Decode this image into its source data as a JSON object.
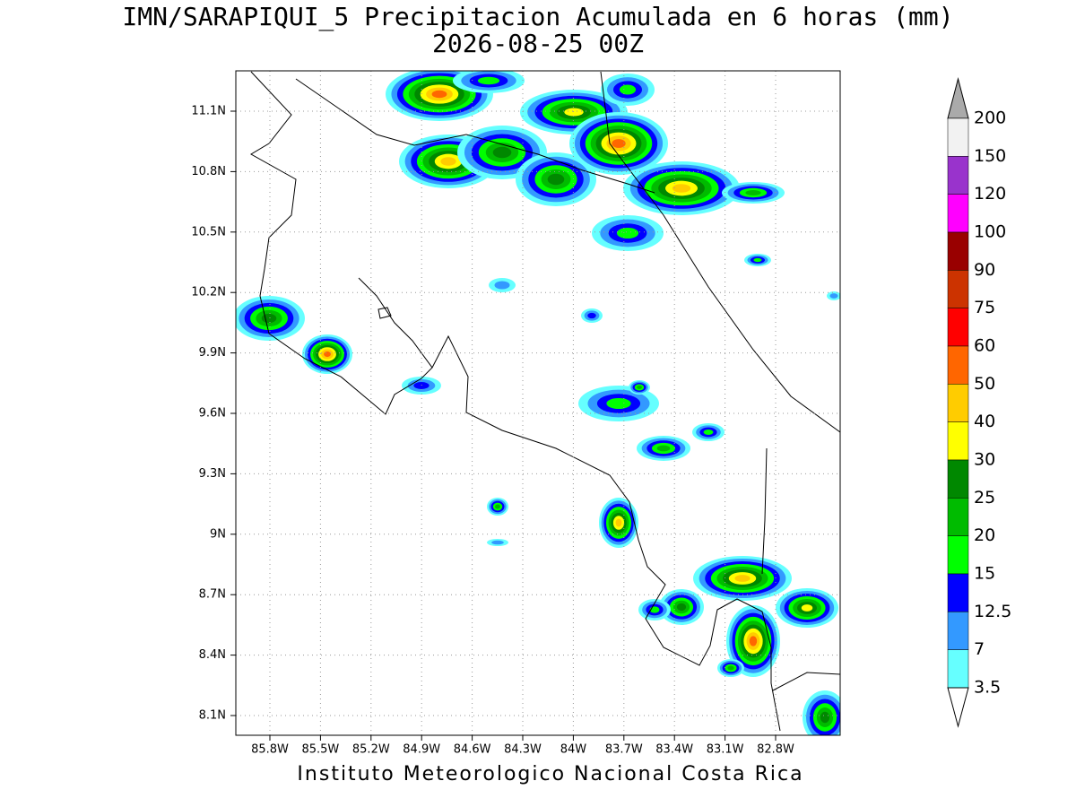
{
  "header": {
    "title": "IMN/SARAPIQUI_5 Precipitacion Acumulada en 6 horas (mm)",
    "subtitle": "2026-08-25 00Z"
  },
  "map": {
    "lon_ticks": [
      "85.8W",
      "85.5W",
      "85.2W",
      "84.9W",
      "84.6W",
      "84.3W",
      "84W",
      "83.7W",
      "83.4W",
      "83.1W",
      "82.8W"
    ],
    "lat_ticks": [
      "11.1N",
      "10.8N",
      "10.5N",
      "10.2N",
      "9.9N",
      "9.6N",
      "9.3N",
      "9N",
      "8.7N",
      "8.4N",
      "8.1N"
    ],
    "grid": true
  },
  "colorbar": {
    "labels": [
      "200",
      "150",
      "120",
      "100",
      "90",
      "75",
      "60",
      "50",
      "40",
      "30",
      "25",
      "20",
      "15",
      "12.5",
      "7",
      "3.5"
    ],
    "colors": [
      "#f2f2f2",
      "#9933cc",
      "#ff00ff",
      "#990000",
      "#cc3300",
      "#ff0000",
      "#ff6600",
      "#ffcc00",
      "#ffff00",
      "#008800",
      "#00bb00",
      "#00ff00",
      "#0000ff",
      "#3399ff",
      "#66ffff"
    ],
    "top_color": "#aaaaaa",
    "bottom_color": "#ffffff"
  },
  "footer": "Instituto Meteorologico Nacional Costa Rica"
}
